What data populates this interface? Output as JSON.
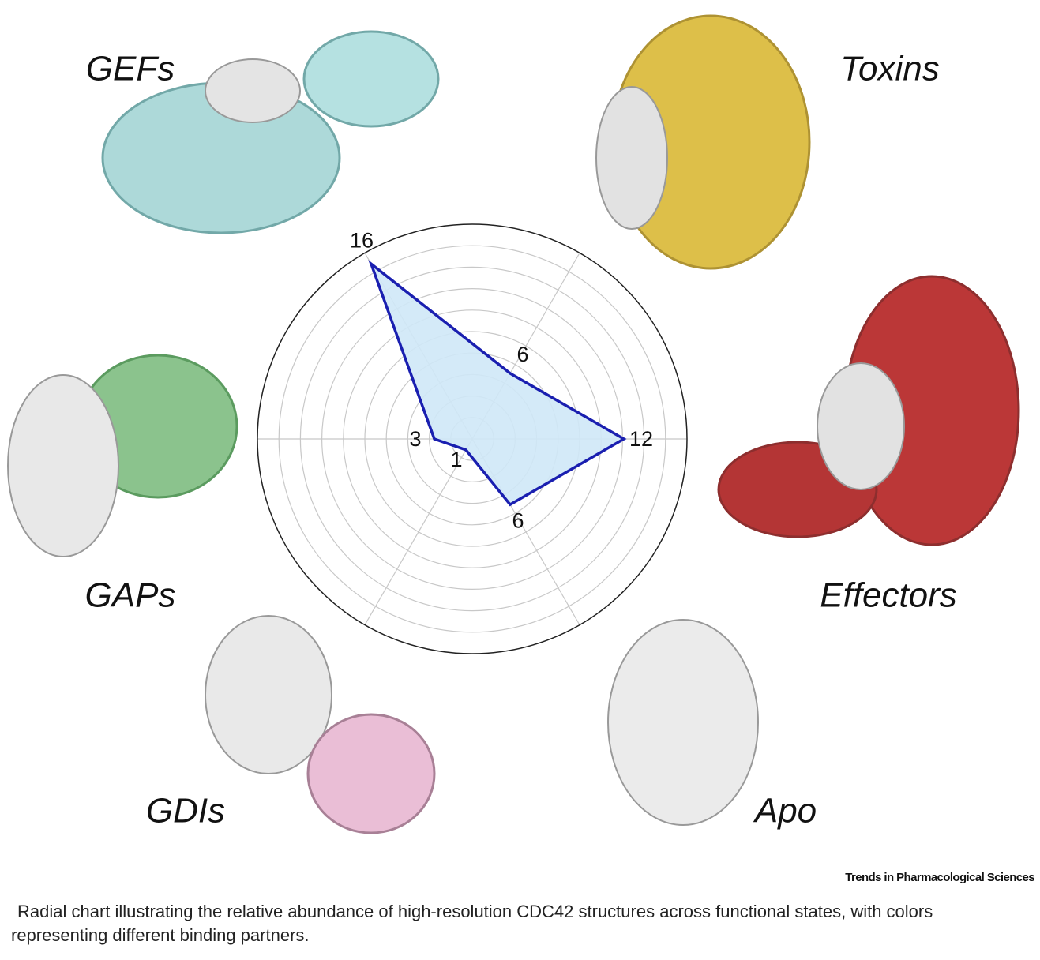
{
  "chart_data": {
    "type": "radar",
    "categories": [
      "GEFs",
      "Toxins",
      "Effectors",
      "Apo",
      "GDIs",
      "GAPs"
    ],
    "values": [
      16,
      6,
      12,
      6,
      1,
      3
    ],
    "color": "#1a1fb0",
    "fill": "#cfe8f7",
    "rlim": [
      0,
      17
    ],
    "rings": [
      1.7,
      3.4,
      5.1,
      6.8,
      8.5,
      10.2,
      11.9,
      13.6,
      15.3
    ],
    "grid": true
  },
  "source": "Trends in Pharmacological Sciences",
  "caption": "Radial chart illustrating the relative abundance of high-resolution CDC42 structures across functional states, with colors representing different binding partners."
}
